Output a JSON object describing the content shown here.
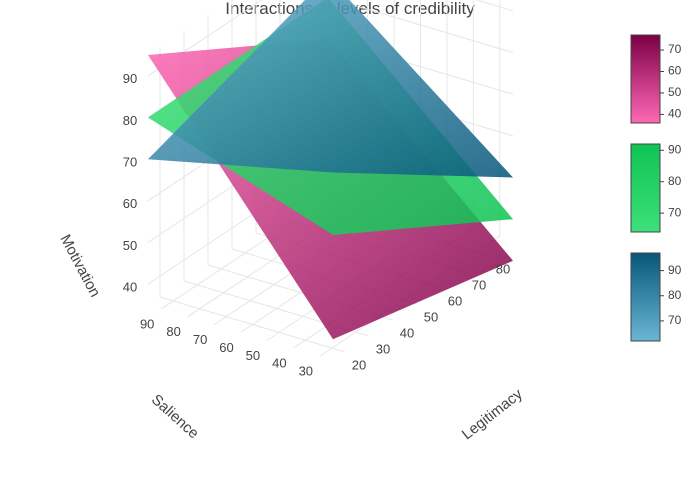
{
  "chart_data": {
    "type": "surface",
    "title": "Interactions at levels of credibility",
    "axes": {
      "x": {
        "label": "Legitimacy",
        "ticks": [
          20,
          30,
          40,
          50,
          60,
          70,
          80
        ],
        "range": [
          15,
          90
        ]
      },
      "y": {
        "label": "Salience",
        "ticks": [
          30,
          40,
          50,
          60,
          70,
          80,
          90
        ],
        "range": [
          25,
          95
        ]
      },
      "z": {
        "label": "Motivation",
        "ticks": [
          40,
          50,
          60,
          70,
          80,
          90
        ],
        "range": [
          35,
          95
        ]
      }
    },
    "series": [
      {
        "corners": {
          "x_min_y_min": 40,
          "x_max_y_min": 30,
          "x_min_y_max": 95,
          "x_max_y_max": 70
        },
        "colorscale": [
          "#ff69b4",
          "#7b0046"
        ],
        "colorbar_ticks": [
          40,
          50,
          60,
          70
        ],
        "colorbar_range": [
          36,
          77
        ]
      },
      {
        "corners": {
          "x_min_y_min": 65,
          "x_max_y_min": 40,
          "x_max_y_max": 80,
          "x_min_y_max": 80
        },
        "colorscale": [
          "#3de07a",
          "#0fc354"
        ],
        "colorbar_ticks": [
          70,
          80,
          90
        ],
        "colorbar_range": [
          64,
          92
        ]
      },
      {
        "corners": {
          "x_min_y_min": 80,
          "x_max_y_min": 50,
          "x_max_y_max": 85,
          "x_min_y_max": 70
        },
        "colorscale": [
          "#6ab6d4",
          "#07577a"
        ],
        "colorbar_ticks": [
          70,
          80,
          90
        ],
        "colorbar_range": [
          62,
          97
        ]
      }
    ]
  }
}
